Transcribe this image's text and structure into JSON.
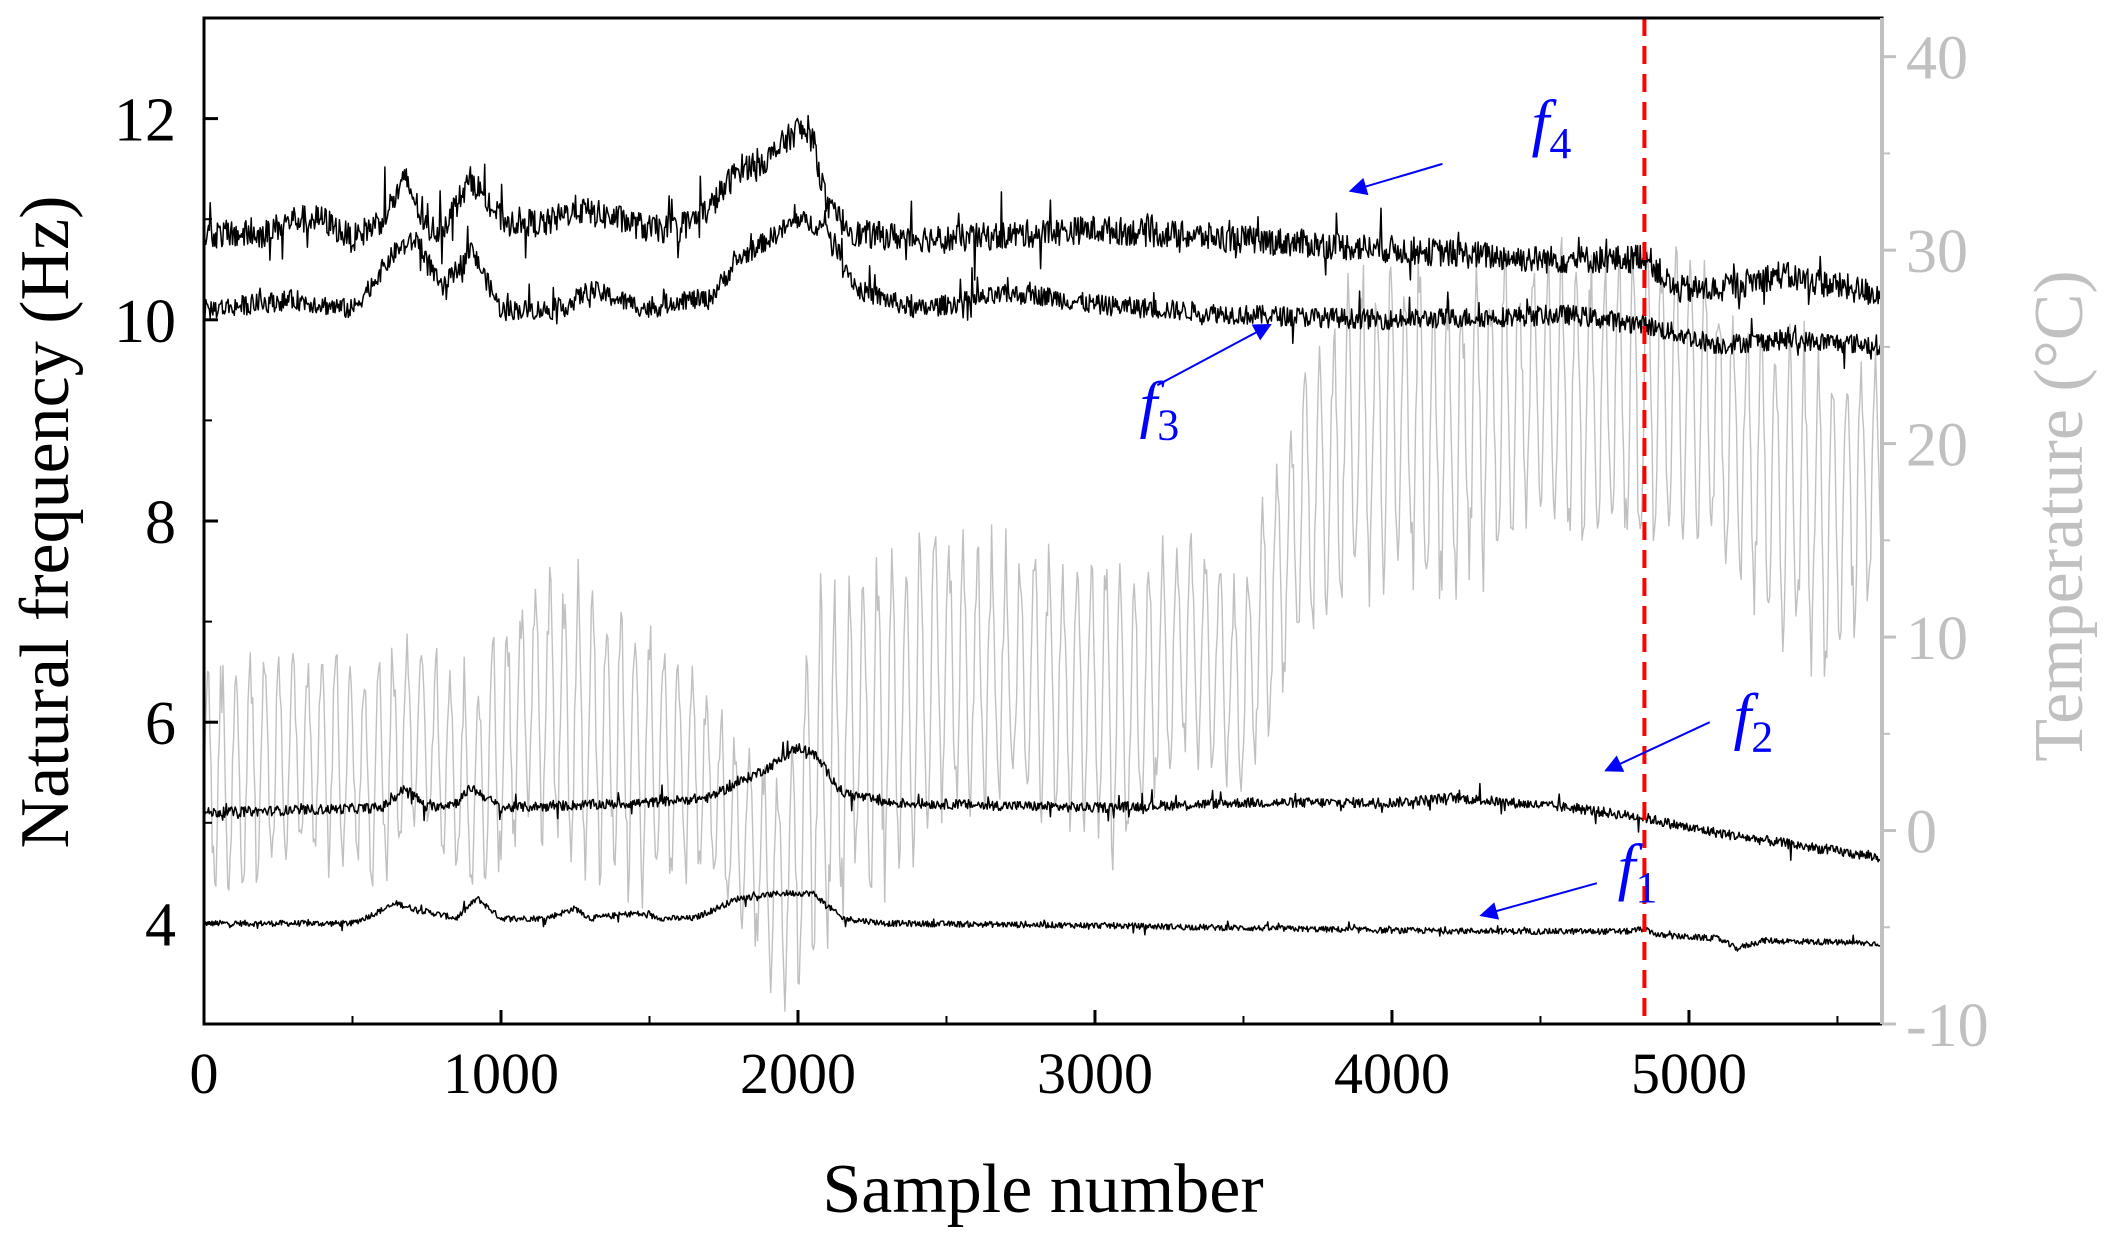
{
  "chart_data": {
    "type": "line",
    "xlabel": "Sample number",
    "ylabel_left": "Natural frequency (Hz)",
    "ylabel_right": "Temperature (°C)",
    "xlim": [
      0,
      5650
    ],
    "ylim_left": [
      3,
      13
    ],
    "ylim_right": [
      -10,
      42
    ],
    "xticks": [
      0,
      1000,
      2000,
      3000,
      4000,
      5000
    ],
    "yticks_left": [
      4,
      6,
      8,
      10,
      12
    ],
    "yticks_right": [
      -10,
      0,
      10,
      20,
      30,
      40
    ],
    "event_marker": {
      "x": 4850,
      "color": "#ff0000",
      "style": "dashed"
    },
    "series": [
      {
        "name": "f1",
        "label_main": "f",
        "label_sub": "1",
        "axis": "left",
        "color": "#000000",
        "noise": 0.03,
        "x": [
          0,
          500,
          650,
          700,
          850,
          920,
          1000,
          1150,
          1250,
          1300,
          1450,
          1550,
          1650,
          1800,
          1950,
          2050,
          2150,
          2300,
          3000,
          4000,
          4500,
          4800,
          4850,
          4900,
          5100,
          5160,
          5250,
          5650
        ],
        "values": [
          4.0,
          4.0,
          4.2,
          4.15,
          4.05,
          4.25,
          4.05,
          4.05,
          4.15,
          4.05,
          4.1,
          4.05,
          4.05,
          4.25,
          4.3,
          4.3,
          4.05,
          4.0,
          3.98,
          3.93,
          3.92,
          3.92,
          3.95,
          3.88,
          3.85,
          3.75,
          3.83,
          3.8
        ]
      },
      {
        "name": "f2",
        "label_main": "f",
        "label_sub": "2",
        "axis": "left",
        "color": "#000000",
        "noise": 0.05,
        "x": [
          0,
          600,
          680,
          750,
          850,
          900,
          1000,
          1500,
          1700,
          1900,
          2000,
          2050,
          2150,
          2300,
          3000,
          3500,
          4000,
          4200,
          4600,
          4850,
          5000,
          5200,
          5650
        ],
        "values": [
          5.1,
          5.15,
          5.35,
          5.15,
          5.2,
          5.35,
          5.15,
          5.2,
          5.25,
          5.55,
          5.75,
          5.7,
          5.3,
          5.2,
          5.15,
          5.2,
          5.2,
          5.25,
          5.15,
          5.05,
          4.95,
          4.85,
          4.65
        ]
      },
      {
        "name": "f3",
        "label_main": "f",
        "label_sub": "3",
        "axis": "left",
        "color": "#000000",
        "noise": 0.1,
        "x": [
          0,
          300,
          500,
          650,
          720,
          800,
          900,
          1000,
          1200,
          1300,
          1500,
          1600,
          1700,
          1800,
          1900,
          2000,
          2100,
          2200,
          2400,
          2700,
          2800,
          3000,
          3500,
          4000,
          4600,
          4850,
          5100,
          5300,
          5650
        ],
        "values": [
          10.1,
          10.2,
          10.1,
          10.7,
          10.8,
          10.3,
          10.7,
          10.1,
          10.1,
          10.3,
          10.1,
          10.2,
          10.2,
          10.6,
          10.8,
          11.0,
          10.9,
          10.3,
          10.1,
          10.25,
          10.25,
          10.15,
          10.05,
          10.0,
          10.05,
          9.95,
          9.75,
          9.8,
          9.75
        ]
      },
      {
        "name": "f4",
        "label_main": "f",
        "label_sub": "4",
        "axis": "left",
        "color": "#000000",
        "noise": 0.14,
        "x": [
          0,
          200,
          300,
          400,
          500,
          600,
          680,
          750,
          800,
          900,
          1000,
          1150,
          1250,
          1400,
          1500,
          1600,
          1700,
          1800,
          1900,
          2000,
          2050,
          2100,
          2200,
          2500,
          3000,
          3500,
          4000,
          4500,
          4800,
          4850,
          4950,
          5100,
          5300,
          5650
        ],
        "values": [
          10.85,
          10.85,
          11.0,
          11.0,
          10.8,
          11.0,
          11.4,
          10.9,
          10.9,
          11.4,
          11.0,
          10.95,
          11.1,
          11.0,
          10.9,
          10.9,
          11.1,
          11.5,
          11.6,
          11.9,
          11.8,
          11.1,
          10.85,
          10.8,
          10.9,
          10.8,
          10.7,
          10.6,
          10.6,
          10.65,
          10.3,
          10.3,
          10.45,
          10.25
        ]
      },
      {
        "name": "Temperature",
        "axis": "right",
        "color": "#c0c0c0",
        "style": "oscillating",
        "period": 48,
        "x": [
          0,
          300,
          600,
          700,
          900,
          1100,
          1300,
          1500,
          1650,
          1800,
          1950,
          2050,
          2200,
          2500,
          2800,
          3000,
          3100,
          3300,
          3500,
          3600,
          3700,
          3900,
          4200,
          4500,
          4700,
          4850,
          5000,
          5150,
          5300,
          5450,
          5650
        ],
        "center": [
          2,
          4,
          3,
          5,
          2,
          7,
          5,
          4,
          3,
          0,
          -3,
          2,
          5,
          8,
          8,
          7,
          6,
          10,
          7,
          12,
          17,
          21,
          20,
          23,
          22,
          22,
          23,
          20,
          18,
          16,
          18
        ],
        "amplitude": [
          7,
          6,
          6,
          6,
          6,
          7,
          8,
          7,
          6,
          5,
          6,
          10,
          10,
          8,
          7,
          8,
          8,
          7,
          6,
          7,
          8,
          9,
          9,
          8,
          8,
          9,
          8,
          7,
          8,
          9,
          6
        ]
      }
    ],
    "annotations": [
      {
        "series": "f4",
        "text_x": 4470,
        "text_y": 11.75,
        "arrow_from": [
          4170,
          11.55
        ],
        "arrow_to": [
          3860,
          11.28
        ]
      },
      {
        "series": "f3",
        "text_x": 3150,
        "text_y": 8.95,
        "arrow_from": [
          3210,
          9.35
        ],
        "arrow_to": [
          3590,
          9.95
        ]
      },
      {
        "series": "f2",
        "text_x": 5150,
        "text_y": 5.85,
        "arrow_from": [
          5070,
          6.0
        ],
        "arrow_to": [
          4720,
          5.52
        ]
      },
      {
        "series": "f1",
        "text_x": 4760,
        "text_y": 4.35,
        "arrow_from": [
          4690,
          4.4
        ],
        "arrow_to": [
          4300,
          4.08
        ]
      }
    ],
    "annotation_color": "#0000ff"
  }
}
